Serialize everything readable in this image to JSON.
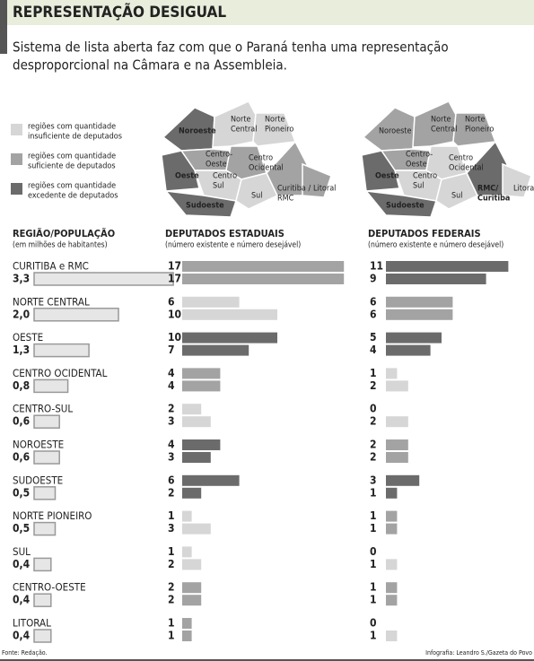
{
  "header": {
    "title": "REPRESENTAÇÃO DESIGUAL",
    "subtitle": [
      "Sistema de lista aberta faz com que o Paraná tenha uma representação",
      "desproporcional na Câmara e na Assembleia."
    ]
  },
  "legend": [
    {
      "label": [
        "regiões com quantidade",
        "insuficiente de deputados"
      ],
      "color": "#d6d6d6"
    },
    {
      "label": [
        "regiões com quantidade",
        "suficiente de deputados"
      ],
      "color": "#a3a3a3"
    },
    {
      "label": [
        "regiões com quantidade",
        "excedente de deputados"
      ],
      "color": "#6b6b6b"
    }
  ],
  "maps": [
    {
      "regions": [
        {
          "label": [
            "Noroeste"
          ],
          "color": "#6b6b6b"
        },
        {
          "label": [
            "Norte",
            "Central"
          ],
          "color": "#d6d6d6"
        },
        {
          "label": [
            "Norte",
            "Pioneiro"
          ],
          "color": "#d6d6d6"
        },
        {
          "label": [
            "Centro-",
            "Oeste"
          ],
          "color": "#a3a3a3"
        },
        {
          "label": [
            "Centro",
            "Ocidental"
          ],
          "color": "#a3a3a3"
        },
        {
          "label": [
            "Oeste"
          ],
          "color": "#6b6b6b"
        },
        {
          "label": [
            "Centro",
            "Sul"
          ],
          "color": "#d6d6d6"
        },
        {
          "label": [
            "Sul"
          ],
          "color": "#d6d6d6"
        },
        {
          "label": [
            "Curitiba /",
            "RMC"
          ],
          "color": "#a3a3a3"
        },
        {
          "label": [
            "Litoral"
          ],
          "color": "#a3a3a3"
        },
        {
          "label": [
            "Sudoeste"
          ],
          "color": "#6b6b6b"
        }
      ]
    },
    {
      "regions": [
        {
          "label": [
            "Noroeste"
          ],
          "color": "#a3a3a3"
        },
        {
          "label": [
            "Norte",
            "Central"
          ],
          "color": "#a3a3a3"
        },
        {
          "label": [
            "Norte",
            "Pioneiro"
          ],
          "color": "#a3a3a3"
        },
        {
          "label": [
            "Centro-",
            "Oeste"
          ],
          "color": "#a3a3a3"
        },
        {
          "label": [
            "Centro",
            "Ocidental"
          ],
          "color": "#d6d6d6"
        },
        {
          "label": [
            "Oeste"
          ],
          "color": "#6b6b6b"
        },
        {
          "label": [
            "Centro",
            "Sul"
          ],
          "color": "#d6d6d6"
        },
        {
          "label": [
            "Sul"
          ],
          "color": "#d6d6d6"
        },
        {
          "label": [
            "RMC/",
            "Curitiba"
          ],
          "color": "#6b6b6b"
        },
        {
          "label": [
            "Litoral"
          ],
          "color": "#d6d6d6"
        },
        {
          "label": [
            "Sudoeste"
          ],
          "color": "#6b6b6b"
        }
      ]
    }
  ],
  "columns": {
    "region": {
      "title": "REGIÃO/POPULAÇÃO",
      "note": "(em milhões de habitantes)"
    },
    "estaduais": {
      "title": "DEPUTADOS ESTADUAIS",
      "note": "(número existente e número desejável)"
    },
    "federais": {
      "title": "DEPUTADOS FEDERAIS",
      "note": "(número existente e número desejável)"
    }
  },
  "rows": [
    {
      "name": "CURITIBA e RMC",
      "population": {
        "value": 3.3,
        "label": "3,3"
      },
      "estaduais": {
        "values": [
          17,
          17
        ],
        "color": "#a3a3a3"
      },
      "federais": {
        "values": [
          11,
          9
        ],
        "color": "#6b6b6b"
      }
    },
    {
      "name": "NORTE CENTRAL",
      "population": {
        "value": 2.0,
        "label": "2,0"
      },
      "estaduais": {
        "values": [
          6,
          10
        ],
        "color": "#d6d6d6"
      },
      "federais": {
        "values": [
          6,
          6
        ],
        "color": "#a3a3a3"
      }
    },
    {
      "name": "OESTE",
      "population": {
        "value": 1.3,
        "label": "1,3"
      },
      "estaduais": {
        "values": [
          10,
          7
        ],
        "color": "#6b6b6b"
      },
      "federais": {
        "values": [
          5,
          4
        ],
        "color": "#6b6b6b"
      }
    },
    {
      "name": "CENTRO OCIDENTAL",
      "population": {
        "value": 0.8,
        "label": "0,8"
      },
      "estaduais": {
        "values": [
          4,
          4
        ],
        "color": "#a3a3a3"
      },
      "federais": {
        "values": [
          1,
          2
        ],
        "color": "#d6d6d6"
      }
    },
    {
      "name": "CENTRO-SUL",
      "population": {
        "value": 0.6,
        "label": "0,6"
      },
      "estaduais": {
        "values": [
          2,
          3
        ],
        "color": "#d6d6d6"
      },
      "federais": {
        "values": [
          0,
          2
        ],
        "color": "#d6d6d6"
      }
    },
    {
      "name": "NOROESTE",
      "population": {
        "value": 0.6,
        "label": "0,6"
      },
      "estaduais": {
        "values": [
          4,
          3
        ],
        "color": "#6b6b6b"
      },
      "federais": {
        "values": [
          2,
          2
        ],
        "color": "#a3a3a3"
      }
    },
    {
      "name": "SUDOESTE",
      "population": {
        "value": 0.5,
        "label": "0,5"
      },
      "estaduais": {
        "values": [
          6,
          2
        ],
        "color": "#6b6b6b"
      },
      "federais": {
        "values": [
          3,
          1
        ],
        "color": "#6b6b6b"
      }
    },
    {
      "name": "NORTE PIONEIRO",
      "population": {
        "value": 0.5,
        "label": "0,5"
      },
      "estaduais": {
        "values": [
          1,
          3
        ],
        "color": "#d6d6d6"
      },
      "federais": {
        "values": [
          1,
          1
        ],
        "color": "#a3a3a3"
      }
    },
    {
      "name": "SUL",
      "population": {
        "value": 0.4,
        "label": "0,4"
      },
      "estaduais": {
        "values": [
          1,
          2
        ],
        "color": "#d6d6d6"
      },
      "federais": {
        "values": [
          0,
          1
        ],
        "color": "#d6d6d6"
      }
    },
    {
      "name": "CENTRO-OESTE",
      "population": {
        "value": 0.4,
        "label": "0,4"
      },
      "estaduais": {
        "values": [
          2,
          2
        ],
        "color": "#a3a3a3"
      },
      "federais": {
        "values": [
          1,
          1
        ],
        "color": "#a3a3a3"
      }
    },
    {
      "name": "LITORAL",
      "population": {
        "value": 0.4,
        "label": "0,4"
      },
      "estaduais": {
        "values": [
          1,
          1
        ],
        "color": "#a3a3a3"
      },
      "federais": {
        "values": [
          0,
          1
        ],
        "color": "#d6d6d6"
      }
    }
  ],
  "footer": {
    "source": "Fonte: Redação.",
    "credit": "Infografia: Leandro S./Gazeta do Povo"
  }
}
